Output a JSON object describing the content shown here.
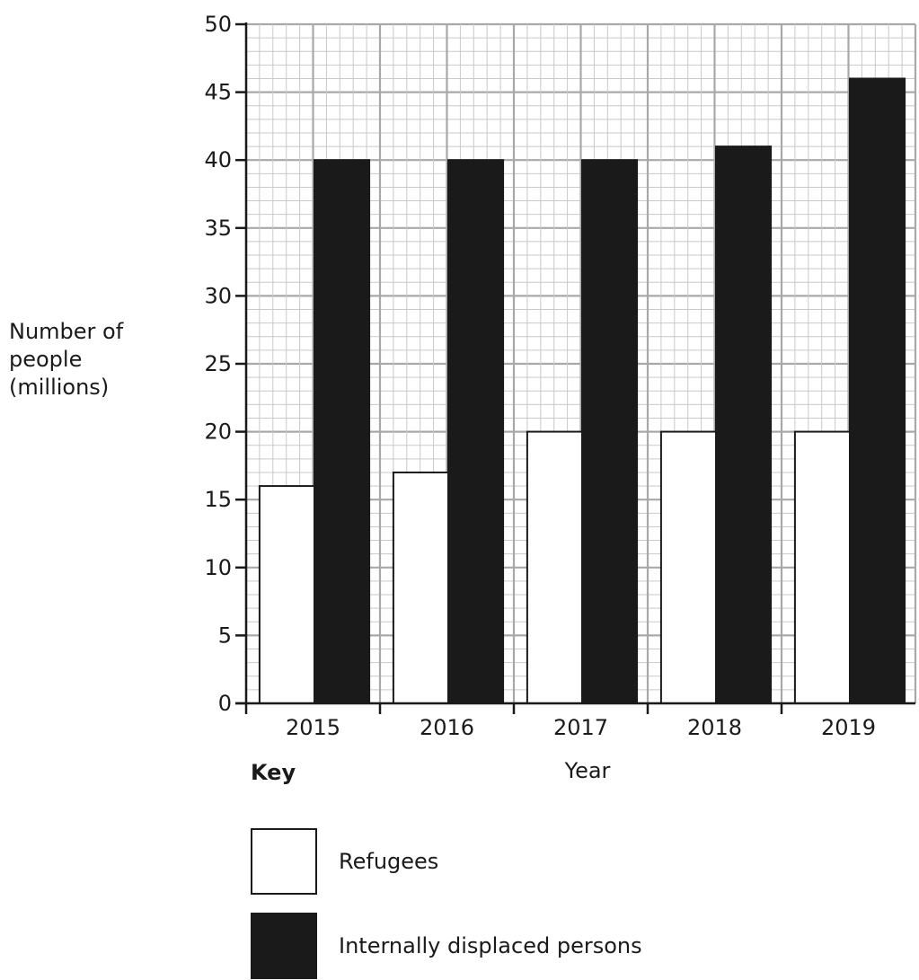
{
  "chart_data": {
    "type": "bar",
    "title": "",
    "xlabel": "Year",
    "ylabel_lines": [
      "Number of",
      "people",
      "(millions)"
    ],
    "categories": [
      "2015",
      "2016",
      "2017",
      "2018",
      "2019"
    ],
    "series": [
      {
        "name": "Refugees",
        "values": [
          16,
          17,
          20,
          20,
          20
        ],
        "color": "#ffffff"
      },
      {
        "name": "Internally displaced persons",
        "values": [
          40,
          40,
          40,
          41,
          46
        ],
        "color": "#1a1a1a"
      }
    ],
    "ylim": [
      0,
      50
    ],
    "yticks": [
      "0",
      "5",
      "10",
      "15",
      "20",
      "25",
      "30",
      "35",
      "40",
      "45",
      "50"
    ],
    "grid": true,
    "legend": {
      "title": "Key",
      "placement": "bottom-left"
    }
  }
}
